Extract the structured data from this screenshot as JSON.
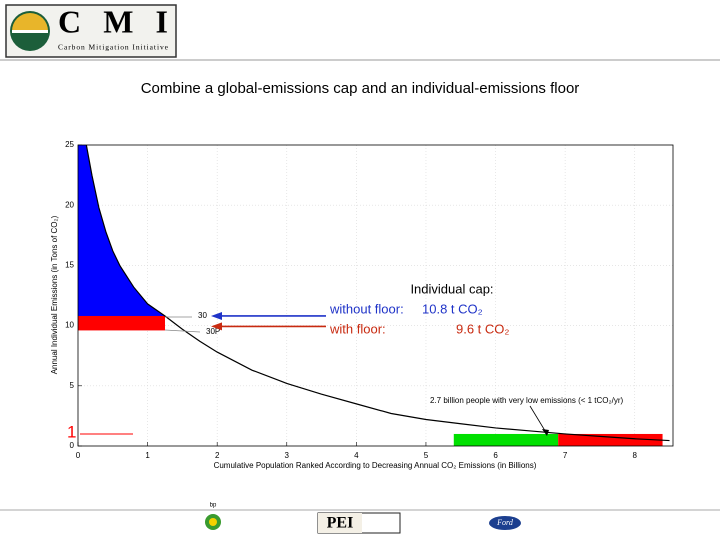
{
  "header": {
    "logo": "CMI",
    "logo_subtitle": "Carbon Mitigation Initiative"
  },
  "footer": {
    "logos": [
      "bp",
      "PEI",
      "Ford"
    ]
  },
  "chart_data": {
    "type": "line",
    "title": "Combine a global-emissions cap and an individual-emissions floor",
    "x_label": "Cumulative Population Ranked According to Decreasing Annual CO₂ Emissions (in Billions)",
    "y_label": "Annual Individual Emissions (in Tons of CO₂)",
    "x": [
      0.12,
      0.2,
      0.3,
      0.4,
      0.5,
      0.6,
      0.8,
      1.0,
      1.25,
      1.5,
      1.75,
      2,
      2.5,
      3,
      3.5,
      4,
      4.5,
      5,
      5.5,
      6,
      6.5,
      7,
      7.5,
      8,
      8.5
    ],
    "values": [
      25,
      22.5,
      19.8,
      17.8,
      16.2,
      15,
      13.2,
      11.8,
      10.8,
      9.7,
      8.7,
      7.8,
      6.3,
      5.2,
      4.3,
      3.5,
      2.7,
      2.2,
      1.85,
      1.5,
      1.25,
      1.0,
      0.8,
      0.6,
      0.45
    ],
    "color": "#000000",
    "xlim": [
      0,
      8.55
    ],
    "ylim": [
      0,
      25
    ],
    "xticks": [
      0,
      1,
      2,
      3,
      4,
      5,
      6,
      7,
      8
    ],
    "yticks": [
      0,
      5,
      10,
      15,
      20,
      25
    ],
    "grid": true,
    "cap_heading": "Individual cap:",
    "caps": [
      {
        "label": "without floor:",
        "value": 10.8,
        "value_label": "10.8 t CO₂",
        "color": "#1f33c8",
        "fill": "#0000ff",
        "tag": "30"
      },
      {
        "label": "with floor:",
        "value": 9.6,
        "value_label": "9.6 t CO₂",
        "color": "#c82a10",
        "fill": "#ff0000",
        "tag": "30P"
      }
    ],
    "floor": 1,
    "floor_label": "1",
    "floor_zone_x": [
      5.4,
      6.9,
      8.4
    ],
    "floor_zone_colors": [
      "#00e000",
      "#ff0000"
    ],
    "floor_note": "2.7 billion people with very low emissions (< 1 tCO₂/yr)"
  }
}
